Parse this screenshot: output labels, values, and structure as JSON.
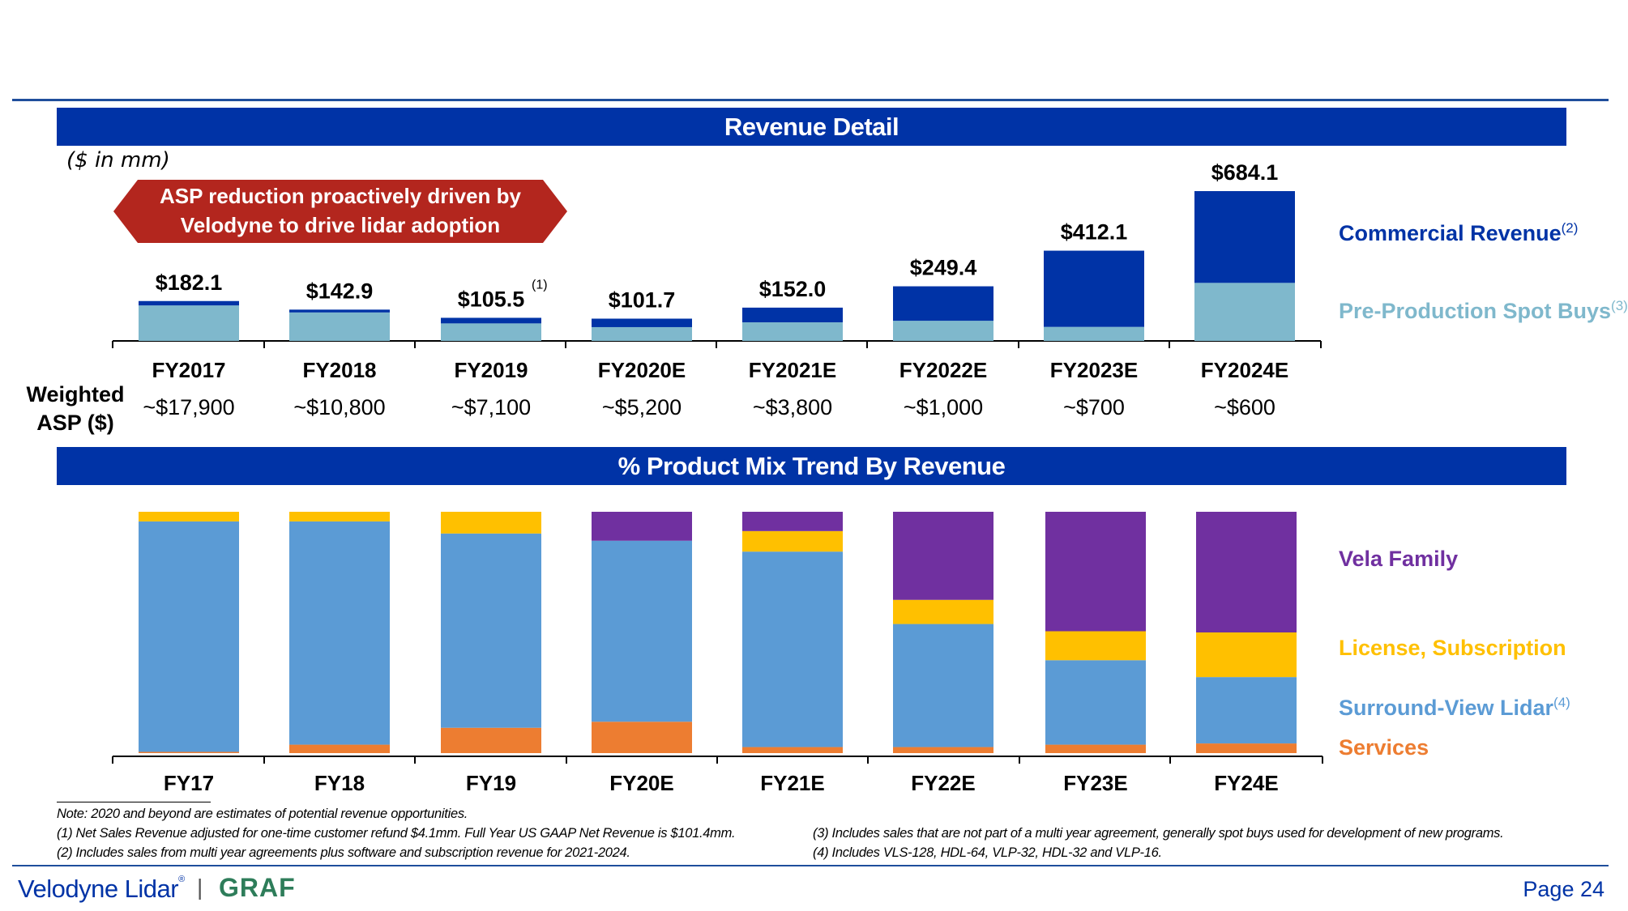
{
  "header": {
    "title1": "Revenue Detail",
    "title2": "% Product Mix Trend By Revenue",
    "units": "($ in mm)"
  },
  "callout": {
    "line1": "ASP reduction proactively driven by",
    "line2": "Velodyne to drive lidar adoption"
  },
  "colors": {
    "banner": "#0033a6",
    "commercial": "#0033a6",
    "preproduction": "#7fb8cc",
    "vela": "#7030a0",
    "license": "#ffc000",
    "surround": "#5b9bd5",
    "services": "#ed7d31",
    "callout": "#b3261e"
  },
  "asp": {
    "label_line1": "Weighted",
    "label_line2": "ASP ($)",
    "values": [
      "~$17,900",
      "~$10,800",
      "~$7,100",
      "~$5,200",
      "~$3,800",
      "~$1,000",
      "~$700",
      "~$600"
    ]
  },
  "legend": {
    "commercial": "Commercial Revenue",
    "commercial_sup": "(2)",
    "preproduction": "Pre-Production Spot Buys",
    "preproduction_sup": "(3)",
    "vela": "Vela Family",
    "license": "License, Subscription",
    "surround": "Surround-View Lidar",
    "surround_sup": "(4)",
    "services": "Services"
  },
  "chart_data": [
    {
      "type": "bar",
      "stacked": true,
      "categories": [
        "FY2017",
        "FY2018",
        "FY2019",
        "FY2020E",
        "FY2021E",
        "FY2022E",
        "FY2023E",
        "FY2024E"
      ],
      "totals_labels": [
        "$182.1",
        "$142.9",
        "$105.5",
        "$101.7",
        "$152.0",
        "$249.4",
        "$412.1",
        "$684.1"
      ],
      "total_footnote": {
        "category": "FY2019",
        "text": "(1)"
      },
      "series": [
        {
          "name": "Pre-Production Spot Buys",
          "values": [
            162,
            130,
            80,
            63,
            85,
            92,
            64,
            265
          ]
        },
        {
          "name": "Commercial Revenue",
          "values": [
            20.1,
            12.9,
            25.5,
            38.7,
            67,
            157.4,
            348.1,
            419.1
          ]
        }
      ],
      "ylim": [
        0,
        700
      ]
    },
    {
      "type": "bar",
      "stacked": true,
      "percent": true,
      "categories": [
        "FY17",
        "FY18",
        "FY19",
        "FY20E",
        "FY21E",
        "FY22E",
        "FY23E",
        "FY24E"
      ],
      "series": [
        {
          "name": "Services",
          "values": [
            0.5,
            3.5,
            10.5,
            13,
            2.5,
            2.5,
            3.5,
            4
          ]
        },
        {
          "name": "Surround-View Lidar",
          "values": [
            95.5,
            92.5,
            80.5,
            75,
            81,
            51,
            35,
            27.5
          ]
        },
        {
          "name": "License, Subscription",
          "values": [
            4,
            4,
            9,
            0,
            8.5,
            10,
            12,
            18.5
          ]
        },
        {
          "name": "Vela Family",
          "values": [
            0,
            0,
            0,
            12,
            8,
            36.5,
            49.5,
            50
          ]
        }
      ],
      "ylim": [
        0,
        100
      ]
    }
  ],
  "notes": {
    "note": "Note: 2020 and beyond are estimates of potential revenue opportunities.",
    "n1": "(1)   Net Sales Revenue adjusted for one-time customer refund $4.1mm. Full Year US GAAP Net Revenue is $101.4mm.",
    "n2": "(2)   Includes sales from multi year agreements plus software and subscription revenue for 2021-2024.",
    "n3": "(3)   Includes sales that are not part of a multi year agreement, generally spot buys used for development of new programs.",
    "n4": "(4)   Includes VLS-128, HDL-64, VLP-32, HDL-32 and VLP-16."
  },
  "footer": {
    "logo": "Velodyne Lidar",
    "logo_mark": "®",
    "separator": "|",
    "partner": "GRAF",
    "page": "Page 24"
  }
}
